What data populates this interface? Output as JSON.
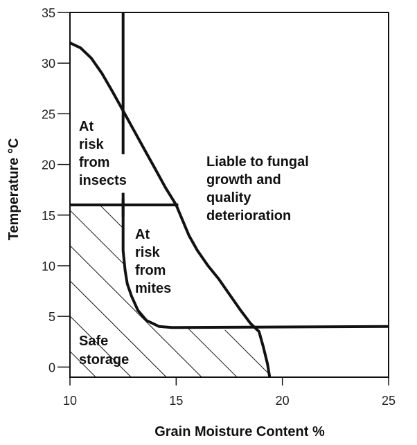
{
  "chart_data": {
    "type": "area",
    "title": "",
    "xlabel": "Grain Moisture Content %",
    "ylabel": "Temperature °C",
    "xlim": [
      10,
      25
    ],
    "ylim": [
      -1,
      35
    ],
    "x_ticks": [
      "10",
      "15",
      "20",
      "25"
    ],
    "y_ticks": [
      "0",
      "5",
      "10",
      "15",
      "20",
      "25",
      "30",
      "35"
    ],
    "grid": false,
    "boundaries": {
      "insect_line": {
        "x": [
          [
            12.5,
            35
          ],
          [
            12.5,
            21
          ]
        ]
      },
      "fungal_curve": {
        "x": [
          10,
          10.5,
          11,
          11.5,
          12,
          12.5,
          13,
          13.5,
          14,
          14.5,
          15,
          15.3,
          15.6,
          16,
          16.5,
          17,
          17.5,
          18,
          18.5,
          18.9,
          19.1,
          19.3,
          19.4
        ],
        "y": [
          32,
          31.5,
          30.5,
          29,
          27.2,
          25.3,
          23.4,
          21.5,
          19.6,
          17.7,
          16,
          14.5,
          13,
          11.5,
          10,
          8.7,
          7.2,
          5.7,
          4.3,
          3.5,
          2,
          0.3,
          -1
        ]
      },
      "temperature_15_line": {
        "x": [
          10,
          15.1
        ],
        "y": [
          16,
          16
        ]
      },
      "mite_curve": {
        "x": [
          12.5,
          12.5,
          12.5,
          12.6,
          12.7,
          12.9,
          13.2,
          13.6,
          14.2,
          14.8,
          25
        ],
        "y": [
          16.6,
          14,
          11.5,
          9.5,
          8.2,
          7,
          5.6,
          4.6,
          4,
          3.9,
          4
        ]
      }
    },
    "regions": [
      {
        "label_lines": [
          "At",
          "risk",
          "from",
          "insects"
        ]
      },
      {
        "label_lines": [
          "Liable to fungal",
          "growth and",
          "quality",
          "deterioration"
        ]
      },
      {
        "label_lines": [
          "At",
          "risk",
          "from",
          "mites"
        ]
      },
      {
        "label_lines": [
          "Safe",
          "storage"
        ],
        "hatched": true
      }
    ]
  }
}
